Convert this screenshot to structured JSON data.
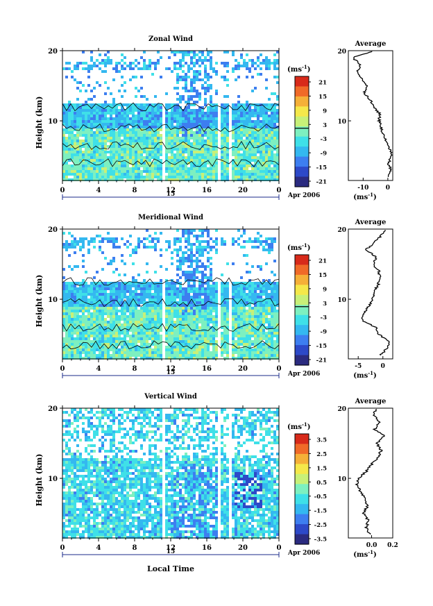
{
  "colors": {
    "palette": [
      "#2b2b80",
      "#2d49c8",
      "#3d7ef0",
      "#34b8f0",
      "#3fe0e8",
      "#7df0c0",
      "#c8f078",
      "#f5e84a",
      "#f5b038",
      "#f06a28",
      "#d82a1a"
    ]
  },
  "common": {
    "ylabel": "Height  (km)",
    "xlabel": "Local Time",
    "date_label": "Apr 2006",
    "day_label": "15",
    "unit_label": "(ms",
    "unit_exp": "-1",
    "unit_close": ")",
    "average_title": "Average"
  },
  "chart_data": [
    {
      "type": "heatmap",
      "title": "Zonal Wind",
      "x_ticks": [
        "0",
        "4",
        "8",
        "12",
        "16",
        "20",
        "0"
      ],
      "y_ticks": [
        "20",
        "10"
      ],
      "xlim": [
        0,
        24
      ],
      "ylim": [
        1.5,
        20
      ],
      "colorbar_ticks": [
        "21",
        "15",
        "9",
        "3",
        "-3",
        "-9",
        "-15",
        "-21"
      ],
      "colorbar_range": [
        -24,
        24
      ],
      "data_gaps_local_time": [
        10.8,
        11.2,
        17.0,
        17.3,
        18.3,
        18.7
      ],
      "profile": {
        "title": "Average",
        "x_ticks": [
          "-10",
          "0"
        ],
        "xlim": [
          -16,
          2
        ],
        "y_ticks": [
          "20",
          "10"
        ],
        "height_km": [
          2,
          3,
          4,
          5,
          6,
          7,
          8,
          9,
          10,
          11,
          12,
          13,
          14,
          15,
          16,
          17,
          18,
          19,
          20
        ],
        "mean_ms": [
          0.5,
          1.2,
          0.3,
          1.5,
          0.8,
          -0.5,
          -2.0,
          -2.8,
          -3.5,
          -3.2,
          -5.8,
          -7.2,
          -9.5,
          -8.8,
          -10.5,
          -12.5,
          -11.0,
          -14.2,
          -5.5
        ]
      }
    },
    {
      "type": "heatmap",
      "title": "Meridional Wind",
      "x_ticks": [
        "0",
        "4",
        "8",
        "12",
        "16",
        "20",
        "0"
      ],
      "y_ticks": [
        "20",
        "10"
      ],
      "xlim": [
        0,
        24
      ],
      "ylim": [
        1.5,
        20
      ],
      "colorbar_ticks": [
        "21",
        "15",
        "9",
        "3",
        "-3",
        "-9",
        "-15",
        "-21"
      ],
      "colorbar_range": [
        -24,
        24
      ],
      "data_gaps_local_time": [
        10.8,
        11.2,
        17.0,
        17.3,
        18.3,
        18.7
      ],
      "profile": {
        "title": "Average",
        "x_ticks": [
          "-5",
          "0"
        ],
        "xlim": [
          -7,
          2
        ],
        "y_ticks": [
          "20",
          "10"
        ],
        "height_km": [
          2,
          3,
          4,
          5,
          6,
          7,
          8,
          9,
          10,
          11,
          12,
          13,
          14,
          15,
          16,
          17,
          18,
          19,
          20
        ],
        "mean_ms": [
          -0.5,
          0.8,
          1.2,
          -0.8,
          -1.5,
          -4.2,
          -4.0,
          -2.8,
          -2.2,
          -1.8,
          -1.0,
          -0.6,
          -0.8,
          -2.0,
          -1.2,
          -3.5,
          -1.8,
          -0.4,
          0.5
        ]
      }
    },
    {
      "type": "heatmap",
      "title": "Vertical Wind",
      "x_ticks": [
        "0",
        "4",
        "8",
        "12",
        "16",
        "20",
        "0"
      ],
      "y_ticks": [
        "20",
        "10"
      ],
      "xlim": [
        0,
        24
      ],
      "ylim": [
        1.5,
        20
      ],
      "colorbar_ticks": [
        "3.5",
        "2.5",
        "1.5",
        "0.5",
        "-0.5",
        "-1.5",
        "-2.5",
        "-3.5"
      ],
      "colorbar_range": [
        -4,
        4
      ],
      "data_gaps_local_time": [
        10.8,
        11.2,
        17.0,
        17.3,
        18.3,
        18.7
      ],
      "profile": {
        "title": "Average",
        "x_ticks": [
          "0.0",
          "0.2"
        ],
        "xlim": [
          -0.22,
          0.2
        ],
        "y_ticks": [
          "20",
          "10"
        ],
        "height_km": [
          2,
          3,
          4,
          5,
          6,
          7,
          8,
          9,
          10,
          11,
          12,
          13,
          14,
          15,
          16,
          17,
          18,
          19,
          20
        ],
        "mean_ms": [
          -0.02,
          -0.05,
          -0.03,
          -0.08,
          -0.04,
          -0.06,
          -0.1,
          -0.14,
          -0.12,
          -0.05,
          0.0,
          0.06,
          0.09,
          0.05,
          0.12,
          0.03,
          0.08,
          0.02,
          0.04
        ]
      }
    }
  ]
}
